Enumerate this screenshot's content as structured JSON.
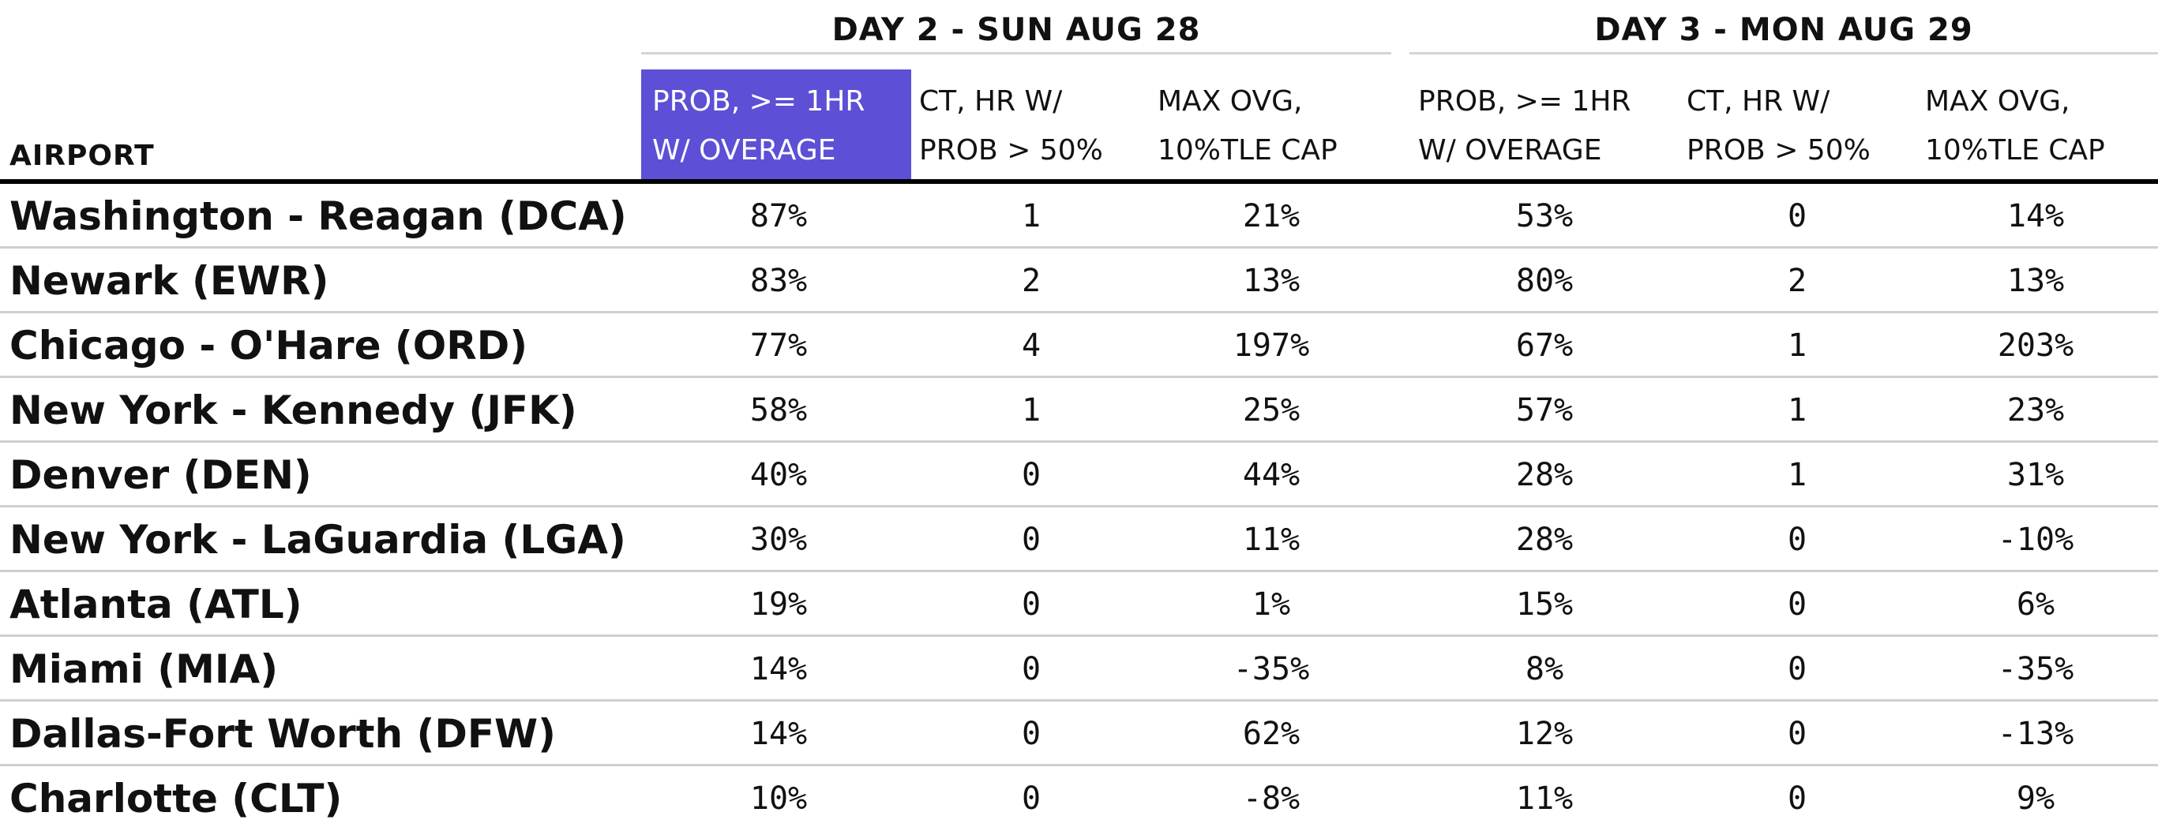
{
  "groups": {
    "day2": "DAY 2 - SUN AUG 28",
    "day3": "DAY 3 - MON AUG 29"
  },
  "columns": {
    "airport": "AIRPORT",
    "day2_prob": [
      "PROB, >= 1HR",
      "W/ OVERAGE"
    ],
    "day2_ct": [
      "CT, HR W/",
      "PROB > 50%"
    ],
    "day2_max": [
      "MAX OVG,",
      "10%TLE CAP"
    ],
    "day3_prob": [
      "PROB, >= 1HR",
      "W/ OVERAGE"
    ],
    "day3_ct": [
      "CT, HR W/",
      "PROB > 50%"
    ],
    "day3_max": [
      "MAX OVG,",
      "10%TLE CAP"
    ]
  },
  "colors": {
    "highlight": "#5d4fd6"
  },
  "rows": [
    {
      "airport": "Washington - Reagan (DCA)",
      "d2_prob": "87%",
      "d2_ct": "1",
      "d2_max": "21%",
      "d3_prob": "53%",
      "d3_ct": "0",
      "d3_max": "14%"
    },
    {
      "airport": "Newark (EWR)",
      "d2_prob": "83%",
      "d2_ct": "2",
      "d2_max": "13%",
      "d3_prob": "80%",
      "d3_ct": "2",
      "d3_max": "13%"
    },
    {
      "airport": "Chicago - O'Hare (ORD)",
      "d2_prob": "77%",
      "d2_ct": "4",
      "d2_max": "197%",
      "d3_prob": "67%",
      "d3_ct": "1",
      "d3_max": "203%"
    },
    {
      "airport": "New York - Kennedy (JFK)",
      "d2_prob": "58%",
      "d2_ct": "1",
      "d2_max": "25%",
      "d3_prob": "57%",
      "d3_ct": "1",
      "d3_max": "23%"
    },
    {
      "airport": "Denver (DEN)",
      "d2_prob": "40%",
      "d2_ct": "0",
      "d2_max": "44%",
      "d3_prob": "28%",
      "d3_ct": "1",
      "d3_max": "31%"
    },
    {
      "airport": "New York - LaGuardia (LGA)",
      "d2_prob": "30%",
      "d2_ct": "0",
      "d2_max": "11%",
      "d3_prob": "28%",
      "d3_ct": "0",
      "d3_max": "-10%"
    },
    {
      "airport": "Atlanta (ATL)",
      "d2_prob": "19%",
      "d2_ct": "0",
      "d2_max": "1%",
      "d3_prob": "15%",
      "d3_ct": "0",
      "d3_max": "6%"
    },
    {
      "airport": "Miami (MIA)",
      "d2_prob": "14%",
      "d2_ct": "0",
      "d2_max": "-35%",
      "d3_prob": "8%",
      "d3_ct": "0",
      "d3_max": "-35%"
    },
    {
      "airport": "Dallas-Fort Worth (DFW)",
      "d2_prob": "14%",
      "d2_ct": "0",
      "d2_max": "62%",
      "d3_prob": "12%",
      "d3_ct": "0",
      "d3_max": "-13%"
    },
    {
      "airport": "Charlotte (CLT)",
      "d2_prob": "10%",
      "d2_ct": "0",
      "d2_max": "-8%",
      "d3_prob": "11%",
      "d3_ct": "0",
      "d3_max": "9%"
    }
  ]
}
